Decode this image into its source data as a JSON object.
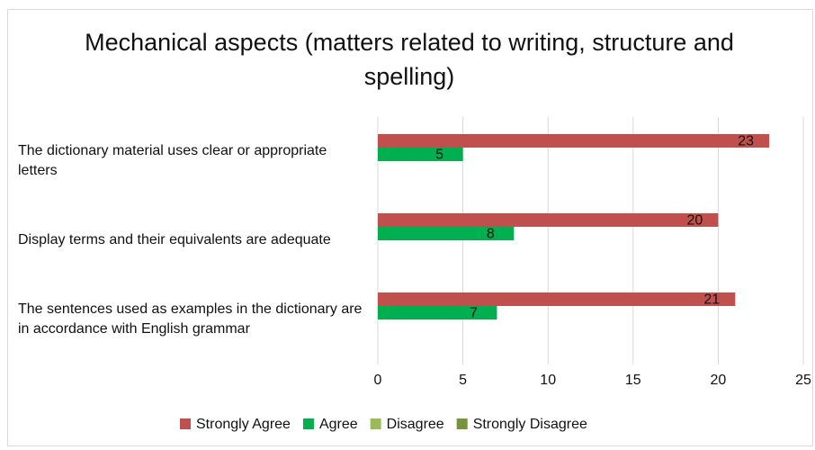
{
  "chart_data": {
    "type": "bar",
    "orientation": "horizontal",
    "title": "Mechanical aspects (matters related to writing, structure and spelling)",
    "categories": [
      "The dictionary material uses clear or appropriate letters",
      "Display terms and their equivalents are adequate",
      "The sentences used as examples in the dictionary are in accordance with English grammar"
    ],
    "series": [
      {
        "name": "Strongly Agree",
        "color": "#c0504d",
        "values": [
          23,
          20,
          21
        ]
      },
      {
        "name": "Agree",
        "color": "#00b050",
        "values": [
          5,
          8,
          7
        ]
      },
      {
        "name": "Disagree",
        "color": "#9bbb59",
        "values": [
          0,
          0,
          0
        ]
      },
      {
        "name": "Strongly Disagree",
        "color": "#77933c",
        "values": [
          0,
          0,
          0
        ]
      }
    ],
    "xlim": [
      0,
      25
    ],
    "xticks": [
      0,
      5,
      10,
      15,
      20,
      25
    ],
    "grid": true,
    "legend": "bottom"
  }
}
